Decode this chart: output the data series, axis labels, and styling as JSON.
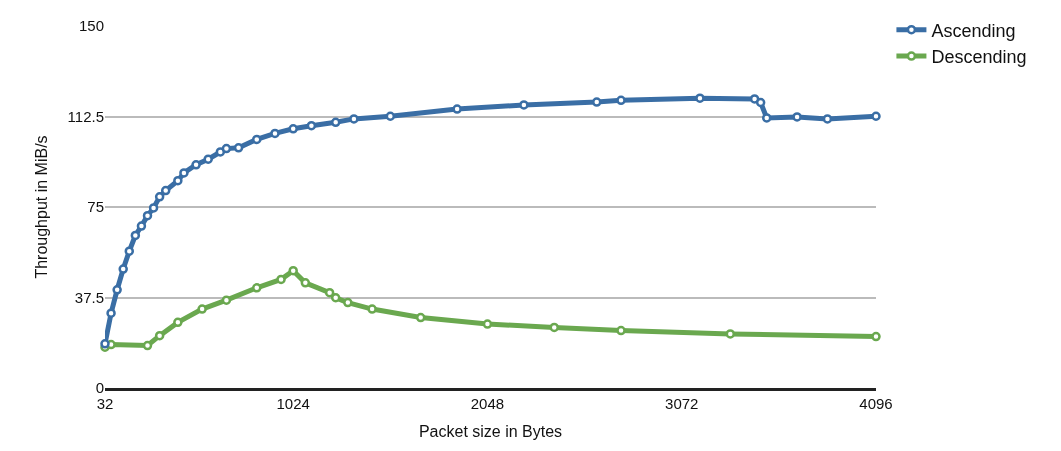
{
  "chart_data": {
    "type": "line",
    "xlabel": "Packet size in Bytes",
    "ylabel": "Throughput in MiB/s",
    "xlim": [
      32,
      4096
    ],
    "xticks": [
      32,
      1024,
      2048,
      3072,
      4096
    ],
    "ylim": [
      0,
      150
    ],
    "yticks": [
      0,
      37.5,
      75,
      112.5,
      150
    ],
    "grid": "y",
    "legend": "top right",
    "marker": "circle",
    "line_style": "solid",
    "series": [
      {
        "name": "Ascending",
        "color": "#3a6ea5",
        "x": [
          32,
          64,
          96,
          128,
          160,
          192,
          224,
          256,
          288,
          320,
          352,
          416,
          448,
          512,
          576,
          640,
          672,
          736,
          832,
          928,
          1024,
          1120,
          1248,
          1344,
          1536,
          1888,
          2240,
          2624,
          2752,
          3168,
          3456,
          3488,
          3520,
          3680,
          3840,
          4096
        ],
        "values": [
          18.3,
          31,
          40.7,
          49.3,
          56.7,
          63.2,
          67.1,
          71.4,
          74.6,
          79.2,
          81.8,
          85.9,
          89.1,
          92.5,
          94.8,
          97.8,
          99.2,
          99.5,
          103,
          105.5,
          107.4,
          108.7,
          110.1,
          111.5,
          112.6,
          115.6,
          117.3,
          118.5,
          119.2,
          120.1,
          119.8,
          118.3,
          111.9,
          112.3,
          111.5,
          112.6
        ]
      },
      {
        "name": "Descending",
        "color": "#6aa84f",
        "x": [
          32,
          64,
          256,
          320,
          416,
          544,
          672,
          832,
          960,
          1024,
          1088,
          1216,
          1248,
          1312,
          1440,
          1696,
          2048,
          2400,
          2752,
          3328,
          4096
        ],
        "values": [
          16.9,
          18,
          17.6,
          21.7,
          27.2,
          32.7,
          36.4,
          41.5,
          45,
          48.6,
          43.6,
          39.5,
          37.4,
          35.4,
          32.7,
          29.2,
          26.5,
          25.1,
          23.8,
          22.4,
          21.3
        ]
      }
    ]
  }
}
